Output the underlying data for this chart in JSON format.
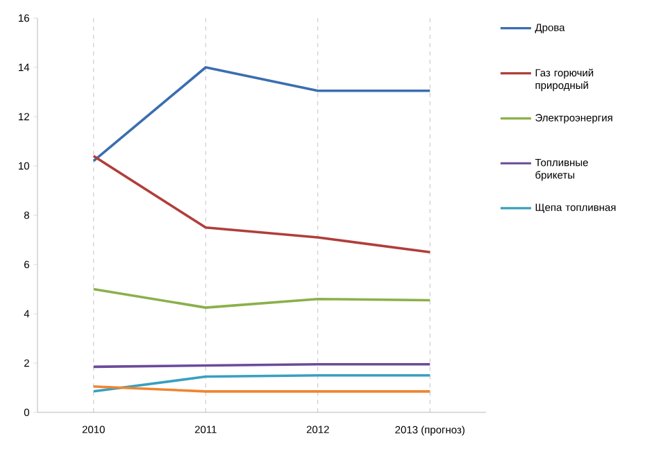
{
  "chart_data": {
    "type": "line",
    "categories": [
      "2010",
      "2011",
      "2012",
      "2013 (прогноз)"
    ],
    "series": [
      {
        "name": "Дрова",
        "color": "#3a6eb0",
        "values": [
          10.2,
          14.0,
          13.05,
          13.05
        ]
      },
      {
        "name": "Газ горючий природный",
        "color": "#b03e3b",
        "values": [
          10.4,
          7.5,
          7.1,
          6.5
        ]
      },
      {
        "name": "Электроэнергия",
        "color": "#8bb04a",
        "values": [
          5.0,
          4.25,
          4.6,
          4.55
        ]
      },
      {
        "name": "Топливные брикеты",
        "color": "#6b4a9a",
        "values": [
          1.85,
          1.9,
          1.95,
          1.95
        ]
      },
      {
        "name": "Щепа топливная",
        "color": "#38a0bf",
        "values": [
          0.85,
          1.45,
          1.5,
          1.5
        ]
      },
      {
        "color": "#ef8530",
        "values": [
          1.05,
          0.85,
          0.85,
          0.85
        ]
      }
    ],
    "ylim": [
      0,
      16
    ],
    "yticks": [
      0,
      2,
      4,
      6,
      8,
      10,
      12,
      14,
      16
    ],
    "grid": "x",
    "legend": "right",
    "marker": "none",
    "line_style": "solid"
  }
}
